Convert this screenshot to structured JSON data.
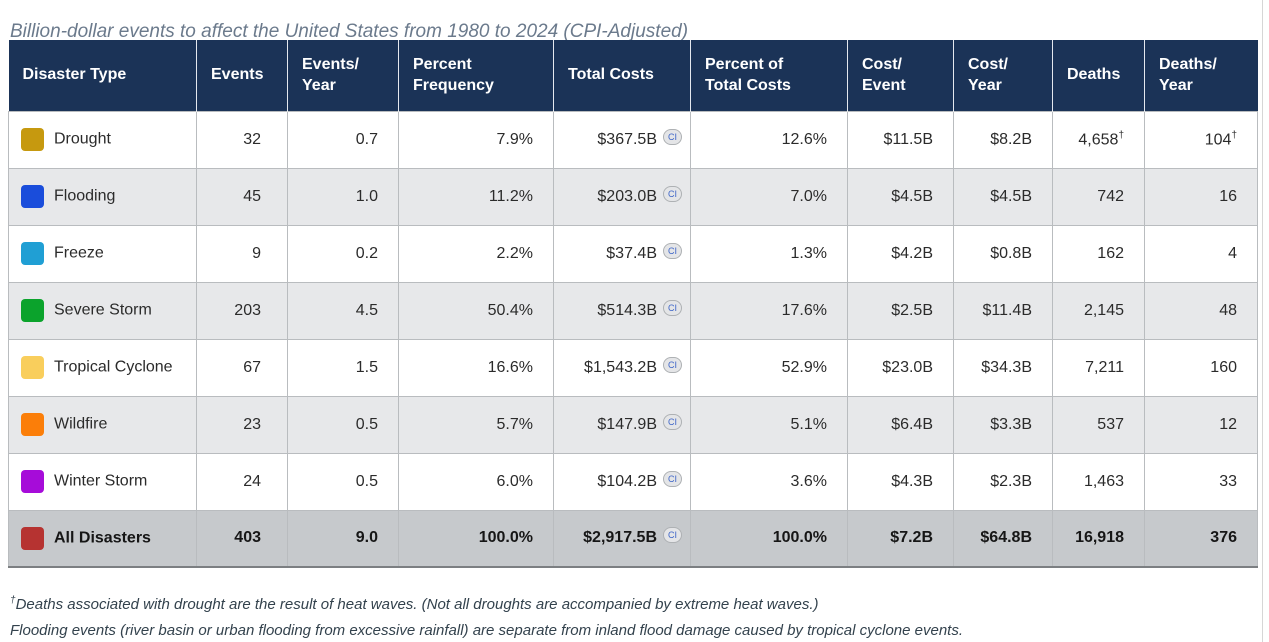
{
  "title": "Billion-dollar events to affect the United States from 1980 to 2024 (CPI-Adjusted)",
  "footnotes": {
    "dagger": "†",
    "line1": "Deaths associated with drought are the result of heat waves. (Not all droughts are accompanied by extreme heat waves.)",
    "line2": "Flooding events (river basin or urban flooding from excessive rainfall) are separate from inland flood damage caused by tropical cyclone events."
  },
  "colors": {
    "header_bg": "#1b3357",
    "alt_row": "#e7e8ea",
    "total_row": "#c6c9cc",
    "ci_color": "#3f66c8",
    "title_color": "#6b7a8c",
    "footnote_color": "#33424d"
  },
  "table": {
    "ci_label": "CI",
    "columns": [
      {
        "id": "disaster-type",
        "label": "Disaster Type"
      },
      {
        "id": "events",
        "label": "Events"
      },
      {
        "id": "events-per-year",
        "label": "Events/\nYear"
      },
      {
        "id": "percent-frequency",
        "label": "Percent\nFrequency"
      },
      {
        "id": "total-costs",
        "label": "Total Costs"
      },
      {
        "id": "percent-of-total-costs",
        "label": "Percent of\nTotal Costs"
      },
      {
        "id": "cost-per-event",
        "label": "Cost/\nEvent"
      },
      {
        "id": "cost-per-year",
        "label": "Cost/\nYear"
      },
      {
        "id": "deaths",
        "label": "Deaths"
      },
      {
        "id": "deaths-per-year",
        "label": "Deaths/\nYear"
      }
    ],
    "rows": [
      {
        "type": "Drought",
        "color": "#c6990f",
        "values": [
          "32",
          "0.7",
          "7.9%",
          "$367.5B",
          "12.6%",
          "$11.5B",
          "$8.2B",
          "4,658",
          "104"
        ],
        "dagger": [
          7,
          8
        ]
      },
      {
        "type": "Flooding",
        "color": "#1a4ddb",
        "values": [
          "45",
          "1.0",
          "11.2%",
          "$203.0B",
          "7.0%",
          "$4.5B",
          "$4.5B",
          "742",
          "16"
        ]
      },
      {
        "type": "Freeze",
        "color": "#209fd4",
        "values": [
          "9",
          "0.2",
          "2.2%",
          "$37.4B",
          "1.3%",
          "$4.2B",
          "$0.8B",
          "162",
          "4"
        ]
      },
      {
        "type": "Severe Storm",
        "color": "#0ba32c",
        "values": [
          "203",
          "4.5",
          "50.4%",
          "$514.3B",
          "17.6%",
          "$2.5B",
          "$11.4B",
          "2,145",
          "48"
        ]
      },
      {
        "type": "Tropical Cyclone",
        "color": "#f9ce5c",
        "values": [
          "67",
          "1.5",
          "16.6%",
          "$1,543.2B",
          "52.9%",
          "$23.0B",
          "$34.3B",
          "7,211",
          "160"
        ]
      },
      {
        "type": "Wildfire",
        "color": "#fb7e09",
        "values": [
          "23",
          "0.5",
          "5.7%",
          "$147.9B",
          "5.1%",
          "$6.4B",
          "$3.3B",
          "537",
          "12"
        ]
      },
      {
        "type": "Winter Storm",
        "color": "#a60cd9",
        "values": [
          "24",
          "0.5",
          "6.0%",
          "$104.2B",
          "3.6%",
          "$4.3B",
          "$2.3B",
          "1,463",
          "33"
        ]
      },
      {
        "type": "All Disasters",
        "color": "#b63331",
        "total": true,
        "values": [
          "403",
          "9.0",
          "100.0%",
          "$2,917.5B",
          "100.0%",
          "$7.2B",
          "$64.8B",
          "16,918",
          "376"
        ]
      }
    ]
  },
  "chart_data": {
    "type": "table",
    "title": "Billion-dollar events to affect the United States from 1980 to 2024 (CPI-Adjusted)",
    "columns": [
      "Disaster Type",
      "Events",
      "Events/Year",
      "Percent Frequency",
      "Total Costs",
      "Percent of Total Costs",
      "Cost/Event",
      "Cost/Year",
      "Deaths",
      "Deaths/Year"
    ],
    "units": {
      "costs": "billions USD (CPI-Adjusted)",
      "percent": "%"
    },
    "rows": [
      {
        "disaster_type": "Drought",
        "events": 32,
        "events_per_year": 0.7,
        "percent_frequency": 7.9,
        "total_costs_billions": 367.5,
        "percent_of_total_costs": 12.6,
        "cost_per_event_billions": 11.5,
        "cost_per_year_billions": 8.2,
        "deaths": 4658,
        "deaths_per_year": 104
      },
      {
        "disaster_type": "Flooding",
        "events": 45,
        "events_per_year": 1.0,
        "percent_frequency": 11.2,
        "total_costs_billions": 203.0,
        "percent_of_total_costs": 7.0,
        "cost_per_event_billions": 4.5,
        "cost_per_year_billions": 4.5,
        "deaths": 742,
        "deaths_per_year": 16
      },
      {
        "disaster_type": "Freeze",
        "events": 9,
        "events_per_year": 0.2,
        "percent_frequency": 2.2,
        "total_costs_billions": 37.4,
        "percent_of_total_costs": 1.3,
        "cost_per_event_billions": 4.2,
        "cost_per_year_billions": 0.8,
        "deaths": 162,
        "deaths_per_year": 4
      },
      {
        "disaster_type": "Severe Storm",
        "events": 203,
        "events_per_year": 4.5,
        "percent_frequency": 50.4,
        "total_costs_billions": 514.3,
        "percent_of_total_costs": 17.6,
        "cost_per_event_billions": 2.5,
        "cost_per_year_billions": 11.4,
        "deaths": 2145,
        "deaths_per_year": 48
      },
      {
        "disaster_type": "Tropical Cyclone",
        "events": 67,
        "events_per_year": 1.5,
        "percent_frequency": 16.6,
        "total_costs_billions": 1543.2,
        "percent_of_total_costs": 52.9,
        "cost_per_event_billions": 23.0,
        "cost_per_year_billions": 34.3,
        "deaths": 7211,
        "deaths_per_year": 160
      },
      {
        "disaster_type": "Wildfire",
        "events": 23,
        "events_per_year": 0.5,
        "percent_frequency": 5.7,
        "total_costs_billions": 147.9,
        "percent_of_total_costs": 5.1,
        "cost_per_event_billions": 6.4,
        "cost_per_year_billions": 3.3,
        "deaths": 537,
        "deaths_per_year": 12
      },
      {
        "disaster_type": "Winter Storm",
        "events": 24,
        "events_per_year": 0.5,
        "percent_frequency": 6.0,
        "total_costs_billions": 104.2,
        "percent_of_total_costs": 3.6,
        "cost_per_event_billions": 4.3,
        "cost_per_year_billions": 2.3,
        "deaths": 1463,
        "deaths_per_year": 33
      },
      {
        "disaster_type": "All Disasters",
        "events": 403,
        "events_per_year": 9.0,
        "percent_frequency": 100.0,
        "total_costs_billions": 2917.5,
        "percent_of_total_costs": 100.0,
        "cost_per_event_billions": 7.2,
        "cost_per_year_billions": 64.8,
        "deaths": 16918,
        "deaths_per_year": 376
      }
    ]
  }
}
